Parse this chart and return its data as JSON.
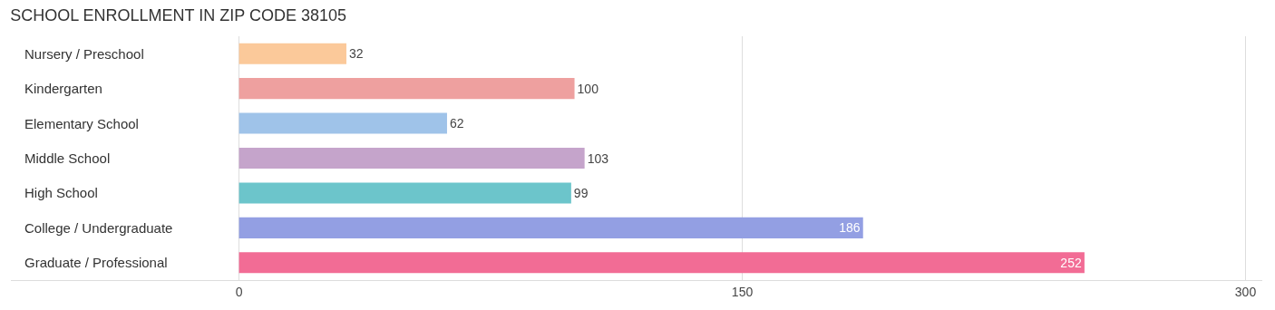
{
  "chart_data": {
    "type": "bar",
    "orientation": "horizontal",
    "title": "SCHOOL ENROLLMENT IN ZIP CODE 38105",
    "categories": [
      "Nursery / Preschool",
      "Kindergarten",
      "Elementary School",
      "Middle School",
      "High School",
      "College / Undergraduate",
      "Graduate / Professional"
    ],
    "values": [
      32,
      100,
      62,
      103,
      99,
      186,
      252
    ],
    "colors": [
      "#fbc99a",
      "#eea09f",
      "#9fc3e9",
      "#c5a4cb",
      "#6cc5cb",
      "#939fe3",
      "#f26c95"
    ],
    "xlim": [
      -68,
      305
    ],
    "xticks": [
      0,
      150,
      300
    ],
    "grid": "x",
    "data_labels": true
  }
}
